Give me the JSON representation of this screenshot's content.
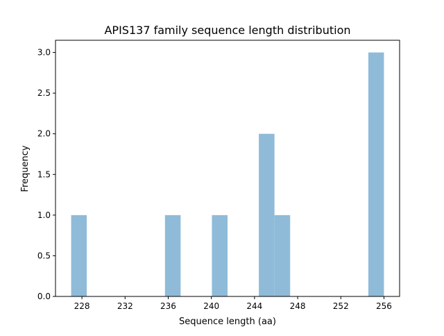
{
  "chart_data": {
    "type": "bar",
    "title": "APIS137 family sequence length distribution",
    "xlabel": "Sequence length (aa)",
    "ylabel": "Frequency",
    "bin_edges": [
      227,
      228.45,
      229.9,
      231.35,
      232.8,
      234.25,
      235.7,
      237.15,
      238.6,
      240.05,
      241.5,
      242.95,
      244.4,
      245.85,
      247.3,
      248.75,
      250.2,
      251.65,
      253.1,
      254.55,
      256
    ],
    "counts": [
      1,
      0,
      0,
      0,
      0,
      0,
      1,
      0,
      0,
      1,
      0,
      0,
      2,
      1,
      0,
      0,
      0,
      0,
      0,
      3
    ],
    "xlim": [
      225.55,
      257.45
    ],
    "ylim": [
      0,
      3.15
    ],
    "xticks": [
      "228",
      "232",
      "236",
      "240",
      "244",
      "248",
      "252",
      "256"
    ],
    "yticks": [
      "0.0",
      "0.5",
      "1.0",
      "1.5",
      "2.0",
      "2.5",
      "3.0"
    ],
    "bar_color": "#8fbbd9",
    "grid": false,
    "legend": "none"
  }
}
